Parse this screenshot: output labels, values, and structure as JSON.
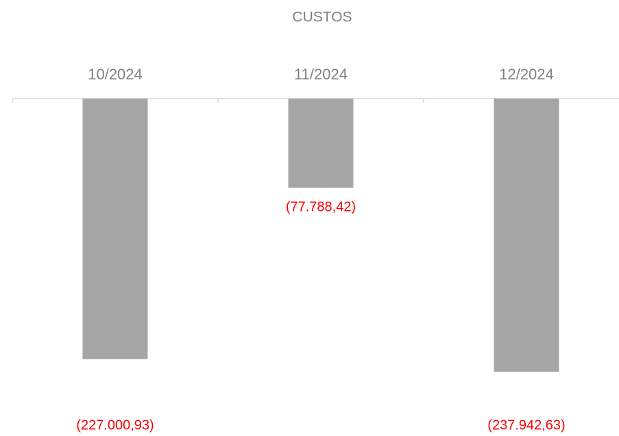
{
  "chart_data": {
    "type": "bar",
    "title": "CUSTOS",
    "categories": [
      "10/2024",
      "11/2024",
      "12/2024"
    ],
    "values": [
      -227000.93,
      -77788.42,
      -237942.63
    ],
    "value_labels": [
      "(227.000,93)",
      "(77.788,42)",
      "(237.942,63)"
    ],
    "color": "#a5a5a5",
    "label_color": "#ff0000",
    "ylim": [
      -240000,
      0
    ]
  }
}
